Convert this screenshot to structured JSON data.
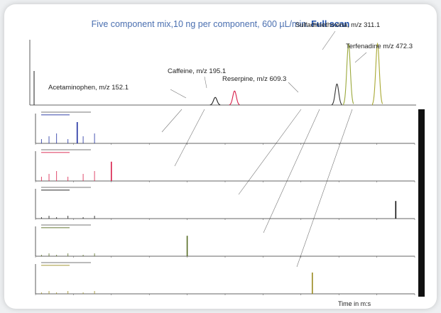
{
  "header": {
    "title_main": "Five component mix,10 ng per component, 600 µL/min.",
    "title_emph": "Full scan"
  },
  "colors": {
    "title": "#4a6fb0",
    "tic": "#222222",
    "acetaminophen": "#1e2fa0",
    "caffeine": "#d81e4a",
    "reserpine": "#333333",
    "sulfadimethoxine": "#9aa83a",
    "terfenadine": "#a8a832",
    "bar": "#111111"
  },
  "chart_data": {
    "type": "line",
    "title": "Five component mix,10 ng per component, 600 µL/min. Full scan",
    "xlabel": "Time in m:s",
    "tic_peaks": [
      {
        "name": "Acetaminophen, m/z 152.1",
        "x": 0.48,
        "height": 0.12,
        "color": "#222222"
      },
      {
        "name": "Caffeine, m/z 195.1",
        "x": 0.53,
        "height": 0.22,
        "color": "#d81e4a"
      },
      {
        "name": "Reserpine, m/z 609.3",
        "x": 0.795,
        "height": 0.33,
        "color": "#333333"
      },
      {
        "name": "Sulfadimethoxina, m/z 311.1",
        "x": 0.825,
        "height": 0.95,
        "color": "#9aa83a"
      },
      {
        "name": "Terfenadine m/z 472.3",
        "x": 0.9,
        "height": 0.96,
        "color": "#a8a832"
      }
    ],
    "panels": [
      {
        "name": "Acetaminophen",
        "color": "#1e2fa0",
        "main_x": 0.11,
        "main_h": 0.75
      },
      {
        "name": "Caffeine",
        "color": "#d81e4a",
        "main_x": 0.2,
        "main_h": 0.68
      },
      {
        "name": "Reserpine",
        "color": "#111111",
        "main_x": 0.95,
        "main_h": 0.62
      },
      {
        "name": "Sulfadimethoxina",
        "color": "#556b22",
        "main_x": 0.4,
        "main_h": 0.72
      },
      {
        "name": "Terfenadine",
        "color": "#9a8a20",
        "main_x": 0.73,
        "main_h": 0.75
      }
    ],
    "grid": false
  }
}
